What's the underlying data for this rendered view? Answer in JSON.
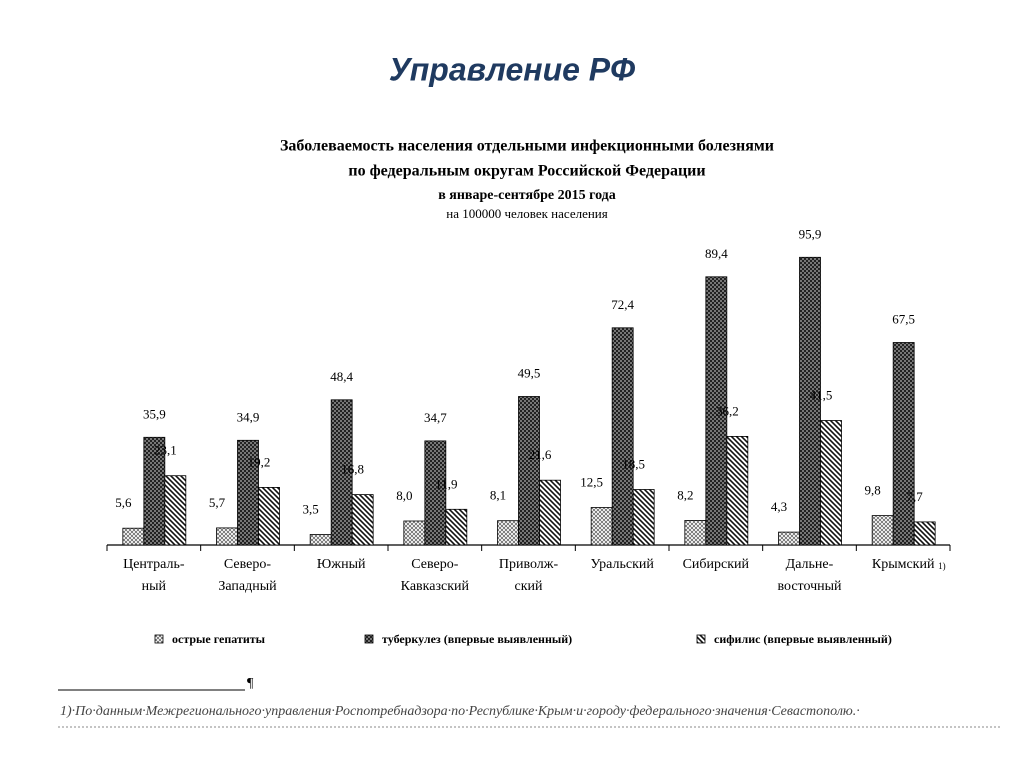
{
  "header": {
    "title": "Управление РФ"
  },
  "chart_data": {
    "type": "bar",
    "title": [
      "Заболеваемость населения отдельными инфекционными болезнями",
      "по федеральным округам Российской Федерации",
      "в январе-сентябре 2015 года"
    ],
    "subtitle": "на 100000 человек населения",
    "categories": [
      [
        "Централь-",
        "ный"
      ],
      [
        "Северо-",
        "Западный"
      ],
      [
        "Южный"
      ],
      [
        "Северо-",
        "Кавказский"
      ],
      [
        "Приволж-",
        "ский"
      ],
      [
        "Уральский"
      ],
      [
        "Сибирский"
      ],
      [
        "Дальне-",
        "восточный"
      ],
      [
        "Крымский"
      ]
    ],
    "category_note": "1)",
    "series": [
      {
        "name": "острые гепатиты",
        "pattern": "crosshatch",
        "values": [
          5.6,
          5.7,
          3.5,
          8.0,
          8.1,
          12.5,
          8.2,
          4.3,
          9.8
        ],
        "value_labels": [
          "5,6",
          "5,7",
          "3,5",
          "8,0",
          "8,1",
          "12,5",
          "8,2",
          "4,3",
          "9,8"
        ]
      },
      {
        "name": "туберкулез (впервые выявленный)",
        "pattern": "checker",
        "values": [
          35.9,
          34.9,
          48.4,
          34.7,
          49.5,
          72.4,
          89.4,
          95.9,
          67.5
        ],
        "value_labels": [
          "35,9",
          "34,9",
          "48,4",
          "34,7",
          "49,5",
          "72,4",
          "89,4",
          "95,9",
          "67,5"
        ]
      },
      {
        "name": "сифилис (впервые выявленный)",
        "pattern": "diagonal",
        "values": [
          23.1,
          19.2,
          16.8,
          11.9,
          21.6,
          18.5,
          36.2,
          41.5,
          7.7
        ],
        "value_labels": [
          "23,1",
          "19,2",
          "16,8",
          "11,9",
          "21,6",
          "18,5",
          "36,2",
          "41,5",
          "7,7"
        ]
      }
    ]
  },
  "footnote": {
    "mark": "¶",
    "text": "1)·По·данным·Межрегионального·управления·Роспотребнадзора·по·Республике·Крым·и·городу·федерального·значения·Севастополю.·"
  }
}
